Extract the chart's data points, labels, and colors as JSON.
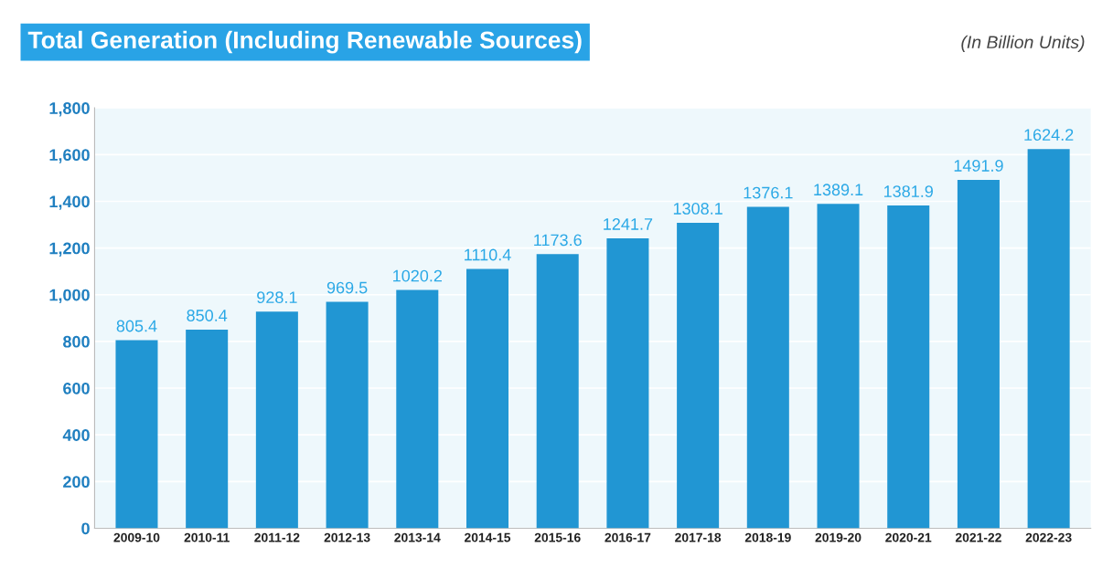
{
  "chart_data": {
    "type": "bar",
    "title": "Total Generation (Including Renewable Sources)",
    "annotations": [
      "(In Billion Units)"
    ],
    "categories": [
      "2009-10",
      "2010-11",
      "2011-12",
      "2012-13",
      "2013-14",
      "2014-15",
      "2015-16",
      "2016-17",
      "2017-18",
      "2018-19",
      "2019-20",
      "2020-21",
      "2021-22",
      "2022-23"
    ],
    "values": [
      805.4,
      850.4,
      928.1,
      969.5,
      1020.2,
      1110.4,
      1173.6,
      1241.7,
      1308.1,
      1376.1,
      1389.1,
      1381.9,
      1491.9,
      1624.2
    ],
    "color": "#2196d3",
    "ylim": [
      0,
      1800
    ],
    "yticks": [
      0,
      200,
      400,
      600,
      800,
      {
        "value": 1000,
        "label": "1,000"
      },
      {
        "value": 1200,
        "label": "1,200"
      },
      {
        "value": 1400,
        "label": "1,400"
      },
      {
        "value": 1600,
        "label": "1,600"
      },
      {
        "value": 1800,
        "label": "1,800"
      }
    ],
    "data_labels": true,
    "grid": "y"
  }
}
